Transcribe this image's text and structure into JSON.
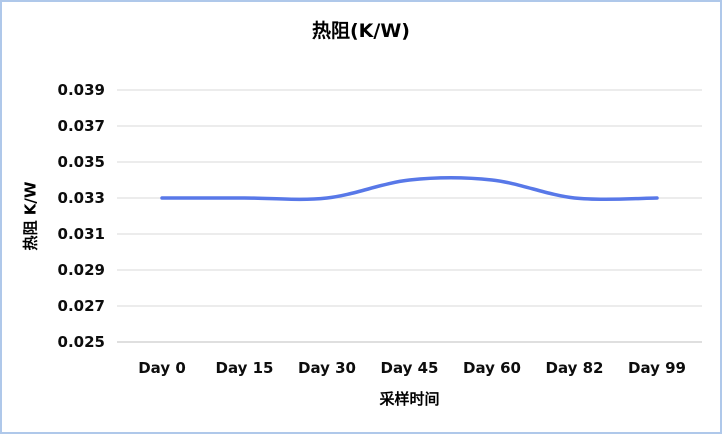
{
  "page": {
    "background": "#FFFFFF",
    "border_color": "#AFC8EA"
  },
  "chart_data": {
    "type": "line",
    "title": "热阻(K/W)",
    "xlabel": "采样时间",
    "ylabel": "热阻 K/W",
    "categories": [
      "Day 0",
      "Day 15",
      "Day 30",
      "Day 45",
      "Day 60",
      "Day 82",
      "Day 99"
    ],
    "values": [
      0.033,
      0.033,
      0.033,
      0.034,
      0.034,
      0.033,
      0.033
    ],
    "ylim": [
      0.025,
      0.039
    ],
    "ytick_step": 0.002,
    "yticks": [
      "0.025",
      "0.027",
      "0.029",
      "0.031",
      "0.033",
      "0.035",
      "0.037",
      "0.039"
    ],
    "grid": true,
    "legend": "none",
    "smooth": true,
    "line_color": "#5878E8",
    "gridline_color": "#D9D9D9",
    "axis_color": "#BFBFBF"
  }
}
